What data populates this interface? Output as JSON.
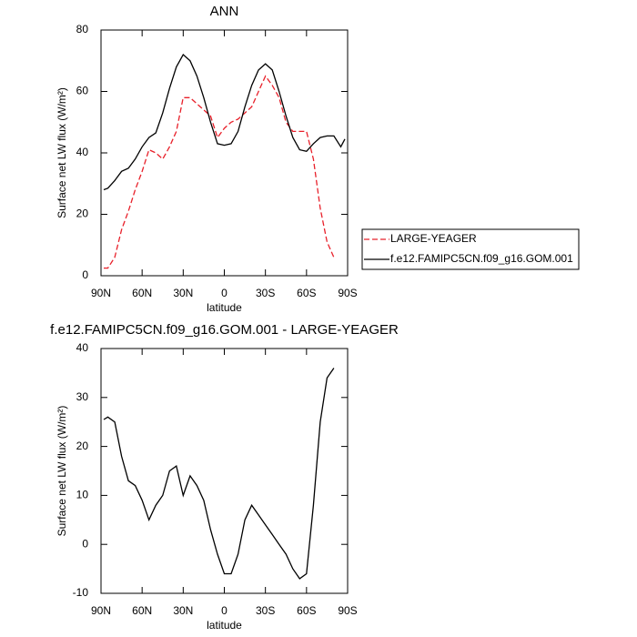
{
  "chart_data": [
    {
      "type": "line",
      "title": "ANN",
      "xlabel": "latitude",
      "ylabel": "Surface net LW flux (W/m²)",
      "x": [
        88,
        85,
        80,
        75,
        70,
        65,
        60,
        55,
        50,
        45,
        40,
        35,
        30,
        25,
        20,
        15,
        10,
        5,
        0,
        -5,
        -10,
        -15,
        -20,
        -25,
        -30,
        -35,
        -40,
        -45,
        -50,
        -55,
        -60,
        -65,
        -70,
        -75,
        -80,
        -85,
        -88
      ],
      "series": [
        {
          "name": "LARGE-YEAGER",
          "color": "#e8202a",
          "dash": true,
          "values": [
            2.5,
            2.5,
            6,
            15,
            21,
            28,
            34,
            41,
            40,
            38,
            42,
            47,
            58,
            58,
            56,
            54,
            52,
            45,
            48,
            50,
            51,
            53,
            55,
            60,
            65,
            62,
            58,
            50,
            47,
            47,
            47,
            38,
            22,
            11,
            6,
            null,
            null
          ]
        },
        {
          "name": "f.e12.FAMIPC5CN.f09_g16.GOM.001",
          "color": "#000000",
          "dash": false,
          "values": [
            28,
            28.5,
            31,
            34,
            35,
            38,
            42,
            45,
            46.5,
            53,
            61,
            68,
            72,
            70,
            65,
            58,
            50,
            43,
            42.5,
            43,
            47,
            55,
            62,
            67,
            69,
            67,
            60,
            52,
            45,
            41,
            40.5,
            43,
            45,
            45.5,
            45.5,
            42,
            44.5
          ]
        }
      ],
      "xlim": [
        90,
        -90
      ],
      "xticks": [
        {
          "value": 90,
          "label": "90N"
        },
        {
          "value": 60,
          "label": "60N"
        },
        {
          "value": 30,
          "label": "30N"
        },
        0,
        {
          "value": -30,
          "label": "30S"
        },
        {
          "value": -60,
          "label": "60S"
        },
        {
          "value": -90,
          "label": "90S"
        }
      ],
      "ylim": [
        0,
        80
      ],
      "yticks": [
        0,
        20,
        40,
        60,
        80
      ],
      "legend": "right"
    },
    {
      "type": "line",
      "title": "f.e12.FAMIPC5CN.f09_g16.GOM.001 - LARGE-YEAGER",
      "xlabel": "latitude",
      "ylabel": "Surface net LW flux (W/m²)",
      "x": [
        88,
        85,
        80,
        75,
        70,
        65,
        60,
        55,
        50,
        45,
        40,
        35,
        30,
        25,
        20,
        15,
        10,
        5,
        0,
        -5,
        -10,
        -15,
        -20,
        -25,
        -30,
        -35,
        -40,
        -45,
        -50,
        -55,
        -60,
        -65,
        -70,
        -75,
        -80,
        -85,
        -88
      ],
      "series": [
        {
          "color": "#000000",
          "dash": false,
          "values": [
            25.5,
            26,
            25,
            18,
            13,
            12,
            9,
            5,
            8,
            10,
            15,
            16,
            10,
            14,
            12,
            9,
            3,
            -2,
            -6,
            -6,
            -2,
            5,
            8,
            6,
            4,
            2,
            0,
            -2,
            -5,
            -7,
            -6,
            8,
            25,
            34,
            36,
            null,
            null
          ]
        }
      ],
      "xlim": [
        90,
        -90
      ],
      "xticks": [
        {
          "value": 90,
          "label": "90N"
        },
        {
          "value": 60,
          "label": "60N"
        },
        {
          "value": 30,
          "label": "30N"
        },
        0,
        {
          "value": -30,
          "label": "30S"
        },
        {
          "value": -60,
          "label": "60S"
        },
        {
          "value": -90,
          "label": "90S"
        }
      ],
      "ylim": [
        -10,
        40
      ],
      "yticks": [
        -10,
        0,
        10,
        20,
        30,
        40
      ]
    }
  ]
}
